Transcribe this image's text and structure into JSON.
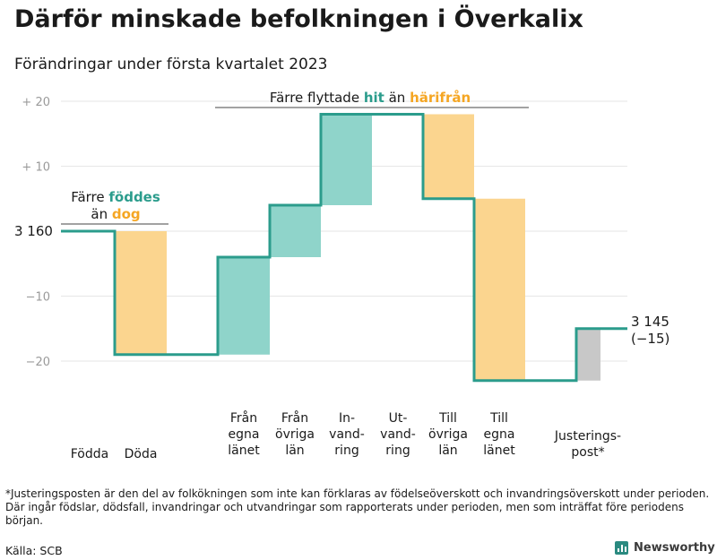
{
  "title": "Därför minskade befolkningen i Överkalix",
  "subtitle": "Förändringar under första kvartalet 2023",
  "footnote": "*Justeringsposten är den del av folkökningen som inte kan förklaras av födelseöverskott och invandringsöverskott under perioden. Där ingår födslar, dödsfall, invandringar och utvandringar som rapporterats under perioden, men som inträffat före periodens början.",
  "source": "Källa: SCB",
  "brand": "Newsworthy",
  "colors": {
    "teal": "#2b9c8c",
    "teal_light": "#8fd4ca",
    "orange": "#f5a623",
    "orange_light": "#fbd58f",
    "gray": "#c8c8c8",
    "grid": "#e6e6e6"
  },
  "chart_data": {
    "type": "waterfall",
    "start_value": 3160,
    "end_value": 3145,
    "net_change": -15,
    "start_label": "3 160",
    "end_label": "3 145",
    "end_change_label": "(−15)",
    "y_ticks": [
      {
        "value": 20,
        "label": "+ 20"
      },
      {
        "value": 10,
        "label": "+ 10"
      },
      {
        "value": -10,
        "label": "−10"
      },
      {
        "value": -20,
        "label": "−20"
      }
    ],
    "ylim": [
      -24,
      21
    ],
    "steps": [
      {
        "key": "fodda",
        "label": [
          "Födda"
        ],
        "change": 0,
        "color": "teal_light"
      },
      {
        "key": "doda",
        "label": [
          "Döda"
        ],
        "change": -19,
        "color": "orange_light"
      },
      {
        "key": "fran-egna-lanet",
        "label": [
          "Från",
          "egna",
          "länet"
        ],
        "change": 15,
        "color": "teal_light"
      },
      {
        "key": "fran-ovriga-lan",
        "label": [
          "Från",
          "övriga",
          "län"
        ],
        "change": 8,
        "color": "teal_light"
      },
      {
        "key": "invandring",
        "label": [
          "In-",
          "vand-",
          "ring"
        ],
        "change": 14,
        "color": "teal_light"
      },
      {
        "key": "utvandring",
        "label": [
          "Ut-",
          "vand-",
          "ring"
        ],
        "change": 0,
        "color": "orange_light"
      },
      {
        "key": "till-ovriga-lan",
        "label": [
          "Till",
          "övriga",
          "län"
        ],
        "change": -13,
        "color": "orange_light"
      },
      {
        "key": "till-egna-lanet",
        "label": [
          "Till",
          "egna",
          "länet"
        ],
        "change": -28,
        "color": "orange_light"
      },
      {
        "key": "justeringspost",
        "label": [
          "Justerings-",
          "post*"
        ],
        "change": 8,
        "color": "gray"
      }
    ],
    "annotations": [
      {
        "key": "births",
        "line1": [
          {
            "t": "Färre ",
            "c": ""
          },
          {
            "t": "föddes",
            "c": "teal"
          }
        ],
        "line2": [
          {
            "t": "än ",
            "c": ""
          },
          {
            "t": "dog",
            "c": "orange"
          }
        ]
      },
      {
        "key": "migration",
        "line1": [
          {
            "t": "Färre flyttade ",
            "c": ""
          },
          {
            "t": "hit",
            "c": "teal"
          },
          {
            "t": " än ",
            "c": ""
          },
          {
            "t": "härifrån",
            "c": "orange"
          }
        ]
      }
    ]
  }
}
